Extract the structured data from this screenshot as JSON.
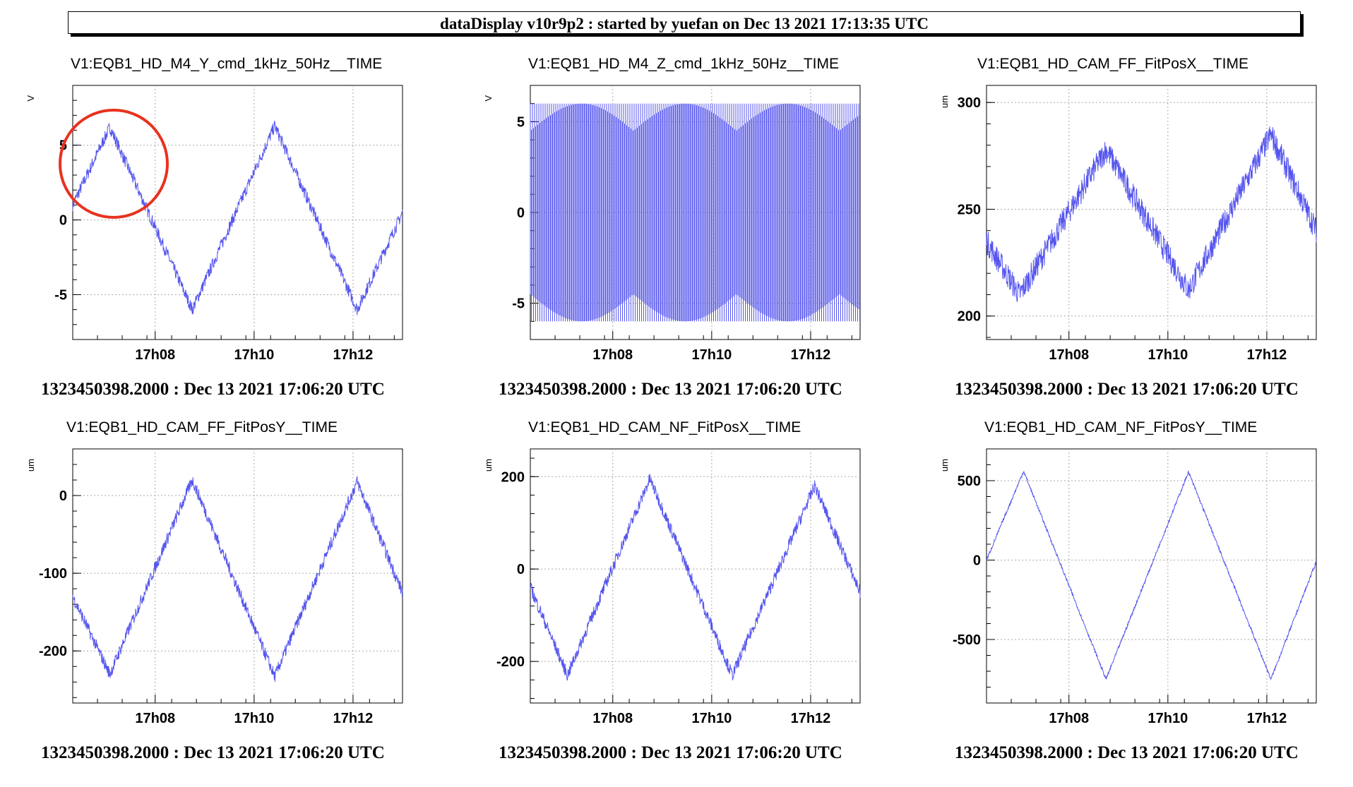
{
  "header": {
    "title": "dataDisplay v10r9p2 : started by yuefan on Dec 13 2021 17:13:35 UTC"
  },
  "colors": {
    "trace": "#5555ee",
    "annotation_circle": "#e8321f",
    "grid": "#aaaaaa"
  },
  "chart_data": [
    {
      "type": "line",
      "title": "V1:EQB1_HD_M4_Y_cmd_1kHz_50Hz__TIME",
      "ylabel": "V",
      "xlabel": "1323450398.2000 : Dec 13 2021 17:06:20 UTC",
      "x_ticks": [
        "17h08",
        "17h10",
        "17h12"
      ],
      "y_ticks": [
        5,
        0,
        -5
      ],
      "ylim": [
        -8,
        9
      ],
      "series": [
        {
          "x": [
            "17:06:20",
            "17:07:05",
            "17:08:45",
            "17:10:25",
            "17:12:05",
            "17:13:00"
          ],
          "values": [
            1,
            6.2,
            -6,
            6.3,
            -6,
            0.5
          ]
        }
      ],
      "grid": true
    },
    {
      "type": "line",
      "title": "V1:EQB1_HD_M4_Z_cmd_1kHz_50Hz__TIME",
      "ylabel": "V",
      "xlabel": "1323450398.2000 : Dec 13 2021 17:06:20 UTC",
      "x_ticks": [
        "17h08",
        "17h10",
        "17h12"
      ],
      "y_ticks": [
        5,
        0,
        -5
      ],
      "ylim": [
        -7,
        7
      ],
      "series": [
        {
          "x": [
            "17:06:20",
            "17:13:00"
          ],
          "values": [
            6,
            6
          ],
          "band_min": [
            -6,
            -6
          ]
        }
      ],
      "grid": true
    },
    {
      "type": "line",
      "title": "V1:EQB1_HD_CAM_FF_FitPosX__TIME",
      "ylabel": "um",
      "xlabel": "1323450398.2000 : Dec 13 2021 17:06:20 UTC",
      "x_ticks": [
        "17h08",
        "17h10",
        "17h12"
      ],
      "y_ticks": [
        300,
        250,
        200
      ],
      "ylim": [
        189,
        308
      ],
      "series": [
        {
          "x": [
            "17:06:20",
            "17:07:00",
            "17:08:45",
            "17:10:25",
            "17:12:05",
            "17:13:00"
          ],
          "values": [
            235,
            210,
            278,
            212,
            285,
            240
          ]
        }
      ],
      "grid": true
    },
    {
      "type": "line",
      "title": "V1:EQB1_HD_CAM_FF_FitPosY__TIME",
      "ylabel": "um",
      "xlabel": "1323450398.2000 : Dec 13 2021 17:06:20 UTC",
      "x_ticks": [
        "17h08",
        "17h10",
        "17h12"
      ],
      "y_ticks": [
        0,
        -100,
        -200
      ],
      "ylim": [
        -267,
        60
      ],
      "series": [
        {
          "x": [
            "17:06:20",
            "17:07:05",
            "17:08:45",
            "17:10:25",
            "17:12:05",
            "17:13:00"
          ],
          "values": [
            -130,
            -230,
            20,
            -233,
            18,
            -125
          ]
        }
      ],
      "grid": true
    },
    {
      "type": "line",
      "title": "V1:EQB1_HD_CAM_NF_FitPosX__TIME",
      "ylabel": "um",
      "xlabel": "1323450398.2000 : Dec 13 2021 17:06:20 UTC",
      "x_ticks": [
        "17h08",
        "17h10",
        "17h12"
      ],
      "y_ticks": [
        200,
        0,
        -200
      ],
      "ylim": [
        -290,
        260
      ],
      "series": [
        {
          "x": [
            "17:06:20",
            "17:07:05",
            "17:08:45",
            "17:10:25",
            "17:12:05",
            "17:13:00"
          ],
          "values": [
            -40,
            -230,
            195,
            -230,
            180,
            -50
          ]
        }
      ],
      "grid": true
    },
    {
      "type": "line",
      "title": "V1:EQB1_HD_CAM_NF_FitPosY__TIME",
      "ylabel": "um",
      "xlabel": "1323450398.2000 : Dec 13 2021 17:06:20 UTC",
      "x_ticks": [
        "17h08",
        "17h10",
        "17h12"
      ],
      "y_ticks": [
        500,
        0,
        -500
      ],
      "ylim": [
        -900,
        700
      ],
      "series": [
        {
          "x": [
            "17:06:20",
            "17:07:05",
            "17:08:45",
            "17:10:25",
            "17:12:05",
            "17:13:00"
          ],
          "values": [
            0,
            560,
            -750,
            555,
            -750,
            -10
          ]
        }
      ],
      "grid": true
    }
  ]
}
